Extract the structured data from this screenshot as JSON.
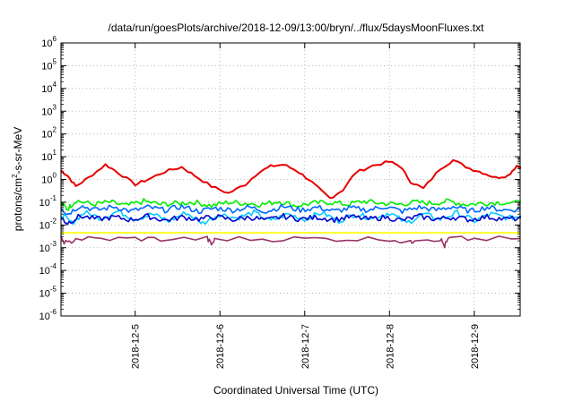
{
  "chart_data": {
    "type": "line",
    "title": "/data/run/goesPlots/archive/2018-12-09/13:00/bryn/../flux/5daysMoonFluxes.txt",
    "xlabel": "Coordinated Universal Time (UTC)",
    "ylabel": "protons/cm²-s-sr-MeV",
    "yscale": "log",
    "ylim": [
      1e-06,
      1000000.0
    ],
    "xlim": [
      "2018-12-04 03:00",
      "2018-12-09 13:00"
    ],
    "grid": true,
    "y_ticks": [
      {
        "base": "10",
        "exp": "-6",
        "value": 1e-06
      },
      {
        "base": "10",
        "exp": "-5",
        "value": 1e-05
      },
      {
        "base": "10",
        "exp": "-4",
        "value": 0.0001
      },
      {
        "base": "10",
        "exp": "-3",
        "value": 0.001
      },
      {
        "base": "10",
        "exp": "-2",
        "value": 0.01
      },
      {
        "base": "10",
        "exp": "-1",
        "value": 0.1
      },
      {
        "base": "10",
        "exp": "0",
        "value": 1
      },
      {
        "base": "10",
        "exp": "1",
        "value": 10
      },
      {
        "base": "10",
        "exp": "2",
        "value": 100
      },
      {
        "base": "10",
        "exp": "3",
        "value": 1000
      },
      {
        "base": "10",
        "exp": "4",
        "value": 10000
      },
      {
        "base": "10",
        "exp": "5",
        "value": 100000
      },
      {
        "base": "10",
        "exp": "6",
        "value": 1000000
      }
    ],
    "x_ticks": [
      {
        "label": "2018-12-5",
        "day": 5
      },
      {
        "label": "2018-12-6",
        "day": 6
      },
      {
        "label": "2018-12-7",
        "day": 7
      },
      {
        "label": "2018-12-8",
        "day": 8
      },
      {
        "label": "2018-12-9",
        "day": 9
      }
    ],
    "series": [
      {
        "color": "#e60000",
        "points": [
          [
            4.125,
            2.5
          ],
          [
            4.2,
            1.5
          ],
          [
            4.3,
            0.5
          ],
          [
            4.45,
            1.2
          ],
          [
            4.65,
            4.5
          ],
          [
            4.8,
            2.0
          ],
          [
            5.0,
            0.6
          ],
          [
            5.15,
            1.0
          ],
          [
            5.35,
            2.2
          ],
          [
            5.55,
            3.5
          ],
          [
            5.7,
            1.5
          ],
          [
            5.9,
            0.5
          ],
          [
            6.1,
            0.25
          ],
          [
            6.3,
            0.6
          ],
          [
            6.45,
            2.0
          ],
          [
            6.6,
            3.8
          ],
          [
            6.75,
            4.5
          ],
          [
            6.9,
            2.5
          ],
          [
            7.05,
            1.0
          ],
          [
            7.2,
            0.3
          ],
          [
            7.3,
            0.15
          ],
          [
            7.45,
            0.35
          ],
          [
            7.6,
            2.0
          ],
          [
            7.8,
            4.0
          ],
          [
            8.0,
            6.0
          ],
          [
            8.12,
            4.0
          ],
          [
            8.25,
            0.8
          ],
          [
            8.4,
            0.4
          ],
          [
            8.6,
            3.0
          ],
          [
            8.75,
            7.0
          ],
          [
            8.95,
            3.0
          ],
          [
            9.1,
            2.0
          ],
          [
            9.25,
            1.2
          ],
          [
            9.4,
            1.5
          ],
          [
            9.5,
            4.0
          ],
          [
            9.58,
            3.0
          ]
        ]
      },
      {
        "color": "#00ee00",
        "points": [
          [
            4.125,
            0.09
          ],
          [
            4.2,
            0.05
          ],
          [
            4.3,
            0.12
          ],
          [
            4.5,
            0.08
          ],
          [
            4.7,
            0.1
          ],
          [
            4.9,
            0.07
          ],
          [
            5.1,
            0.11
          ],
          [
            5.3,
            0.08
          ],
          [
            5.5,
            0.09
          ],
          [
            5.7,
            0.1
          ],
          [
            5.9,
            0.07
          ],
          [
            6.1,
            0.1
          ],
          [
            6.3,
            0.09
          ],
          [
            6.5,
            0.08
          ],
          [
            6.7,
            0.11
          ],
          [
            6.9,
            0.07
          ],
          [
            7.1,
            0.09
          ],
          [
            7.3,
            0.1
          ],
          [
            7.5,
            0.08
          ],
          [
            7.7,
            0.11
          ],
          [
            7.9,
            0.09
          ],
          [
            8.1,
            0.08
          ],
          [
            8.3,
            0.1
          ],
          [
            8.5,
            0.09
          ],
          [
            8.7,
            0.11
          ],
          [
            8.9,
            0.08
          ],
          [
            9.1,
            0.09
          ],
          [
            9.3,
            0.1
          ],
          [
            9.58,
            0.09
          ]
        ]
      },
      {
        "color": "#00ccff",
        "points": [
          [
            4.125,
            0.03
          ],
          [
            4.25,
            0.012
          ],
          [
            4.4,
            0.035
          ],
          [
            4.6,
            0.02
          ],
          [
            4.8,
            0.04
          ],
          [
            5.0,
            0.018
          ],
          [
            5.2,
            0.03
          ],
          [
            5.4,
            0.015
          ],
          [
            5.6,
            0.035
          ],
          [
            5.8,
            0.012
          ],
          [
            6.0,
            0.03
          ],
          [
            6.2,
            0.02
          ],
          [
            6.4,
            0.035
          ],
          [
            6.6,
            0.015
          ],
          [
            6.8,
            0.03
          ],
          [
            7.0,
            0.018
          ],
          [
            7.2,
            0.035
          ],
          [
            7.4,
            0.015
          ],
          [
            7.6,
            0.03
          ],
          [
            7.8,
            0.02
          ],
          [
            8.0,
            0.035
          ],
          [
            8.2,
            0.012
          ],
          [
            8.4,
            0.03
          ],
          [
            8.6,
            0.018
          ],
          [
            8.8,
            0.035
          ],
          [
            9.0,
            0.015
          ],
          [
            9.2,
            0.03
          ],
          [
            9.4,
            0.02
          ],
          [
            9.58,
            0.025
          ]
        ]
      },
      {
        "color": "#0066ff",
        "points": [
          [
            4.125,
            0.06
          ],
          [
            4.2,
            0.03
          ],
          [
            4.35,
            0.07
          ],
          [
            4.55,
            0.045
          ],
          [
            4.75,
            0.065
          ],
          [
            4.95,
            0.04
          ],
          [
            5.15,
            0.06
          ],
          [
            5.35,
            0.045
          ],
          [
            5.55,
            0.065
          ],
          [
            5.75,
            0.04
          ],
          [
            5.95,
            0.055
          ],
          [
            6.15,
            0.045
          ],
          [
            6.35,
            0.06
          ],
          [
            6.55,
            0.04
          ],
          [
            6.75,
            0.065
          ],
          [
            6.95,
            0.045
          ],
          [
            7.15,
            0.06
          ],
          [
            7.35,
            0.04
          ],
          [
            7.55,
            0.055
          ],
          [
            7.75,
            0.045
          ],
          [
            7.95,
            0.065
          ],
          [
            8.15,
            0.04
          ],
          [
            8.35,
            0.06
          ],
          [
            8.55,
            0.045
          ],
          [
            8.75,
            0.065
          ],
          [
            8.95,
            0.04
          ],
          [
            9.15,
            0.06
          ],
          [
            9.35,
            0.045
          ],
          [
            9.58,
            0.05
          ]
        ]
      },
      {
        "color": "#0000cc",
        "points": [
          [
            4.125,
            0.02
          ],
          [
            4.2,
            0.012
          ],
          [
            4.35,
            0.025
          ],
          [
            4.55,
            0.018
          ],
          [
            4.75,
            0.022
          ],
          [
            4.95,
            0.017
          ],
          [
            5.15,
            0.024
          ],
          [
            5.35,
            0.016
          ],
          [
            5.55,
            0.022
          ],
          [
            5.75,
            0.018
          ],
          [
            5.95,
            0.023
          ],
          [
            6.15,
            0.017
          ],
          [
            6.35,
            0.022
          ],
          [
            6.55,
            0.016
          ],
          [
            6.75,
            0.024
          ],
          [
            6.95,
            0.018
          ],
          [
            7.15,
            0.022
          ],
          [
            7.35,
            0.017
          ],
          [
            7.55,
            0.023
          ],
          [
            7.75,
            0.018
          ],
          [
            7.95,
            0.022
          ],
          [
            8.15,
            0.016
          ],
          [
            8.35,
            0.024
          ],
          [
            8.55,
            0.018
          ],
          [
            8.75,
            0.022
          ],
          [
            8.95,
            0.017
          ],
          [
            9.15,
            0.023
          ],
          [
            9.35,
            0.018
          ],
          [
            9.58,
            0.02
          ]
        ]
      },
      {
        "color": "#ffff00",
        "points": [
          [
            4.125,
            0.0045
          ],
          [
            4.5,
            0.0045
          ],
          [
            5.0,
            0.0045
          ],
          [
            5.5,
            0.0045
          ],
          [
            6.0,
            0.0045
          ],
          [
            6.5,
            0.0045
          ],
          [
            7.0,
            0.0045
          ],
          [
            7.5,
            0.0045
          ],
          [
            8.0,
            0.0045
          ],
          [
            8.5,
            0.0045
          ],
          [
            9.0,
            0.0045
          ],
          [
            9.58,
            0.0045
          ]
        ]
      },
      {
        "color": "#993366",
        "points": [
          [
            4.125,
            0.0025
          ],
          [
            4.2,
            0.0015
          ],
          [
            4.3,
            0.0025
          ],
          [
            4.6,
            0.0024
          ],
          [
            5.0,
            0.0025
          ],
          [
            5.3,
            0.0024
          ],
          [
            5.85,
            0.0025
          ],
          [
            5.9,
            0.0014
          ],
          [
            5.95,
            0.0025
          ],
          [
            6.5,
            0.0024
          ],
          [
            7.0,
            0.0025
          ],
          [
            7.5,
            0.0024
          ],
          [
            8.0,
            0.0025
          ],
          [
            8.25,
            0.0016
          ],
          [
            8.3,
            0.0025
          ],
          [
            8.6,
            0.0024
          ],
          [
            8.65,
            0.0012
          ],
          [
            8.7,
            0.0025
          ],
          [
            9.0,
            0.0024
          ],
          [
            9.58,
            0.0025
          ]
        ]
      }
    ]
  }
}
